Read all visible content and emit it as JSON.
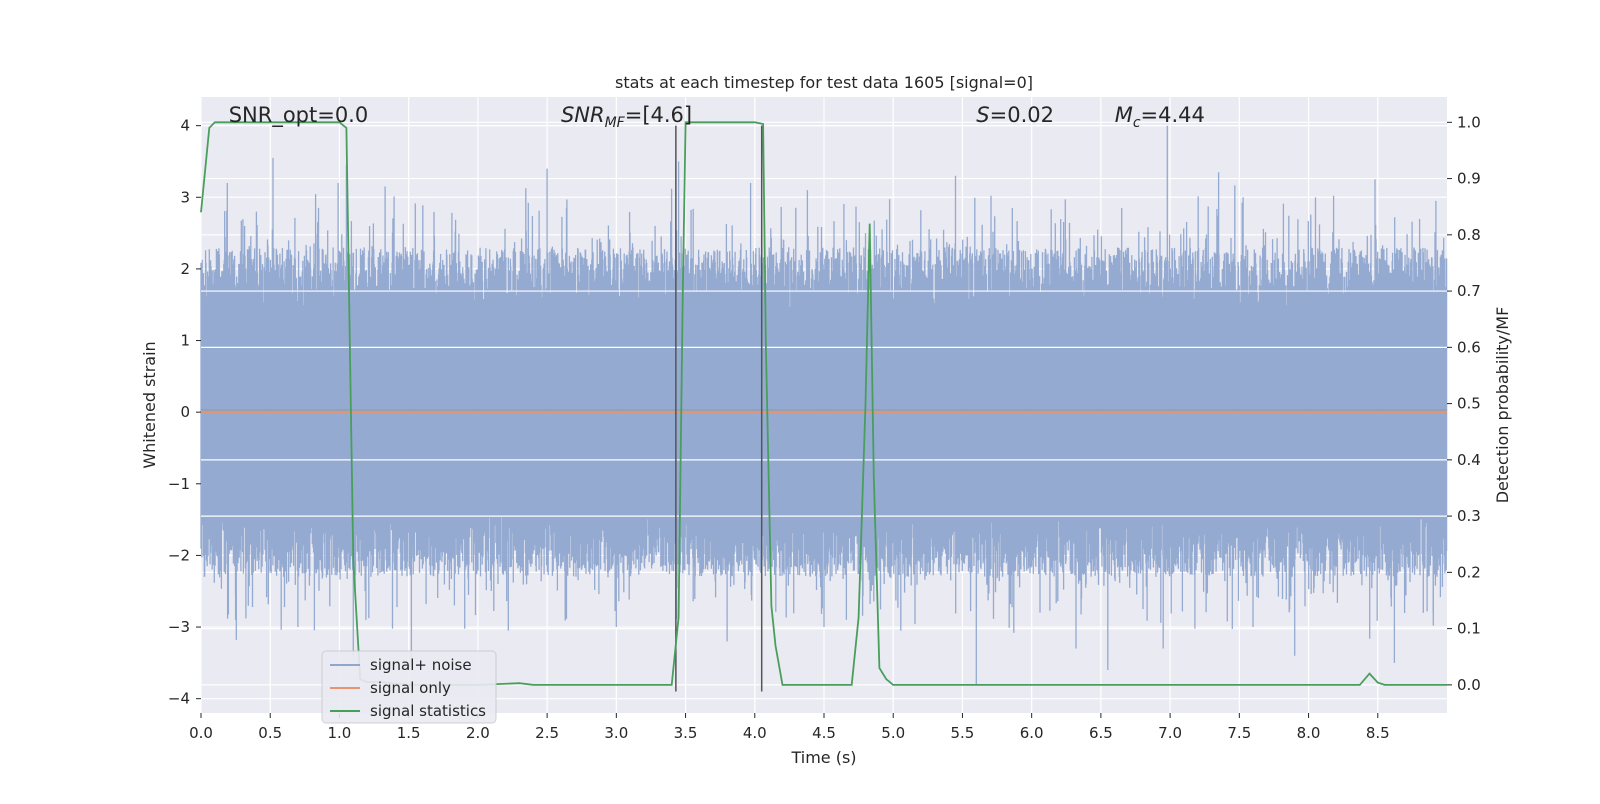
{
  "chart_data": {
    "type": "line",
    "title": "stats at each timestep for test data 1605 [signal=0]",
    "xlabel": "Time (s)",
    "ylabel": "Whitened strain",
    "ylabel_right": "Detection probability/MF",
    "xlim": [
      0.0,
      9.0
    ],
    "ylim": [
      -4.2,
      4.4
    ],
    "ylim_right": [
      -0.05,
      1.045
    ],
    "x_ticks": [
      0.0,
      0.5,
      1.0,
      1.5,
      2.0,
      2.5,
      3.0,
      3.5,
      4.0,
      4.5,
      5.0,
      5.5,
      6.0,
      6.5,
      7.0,
      7.5,
      8.0,
      8.5
    ],
    "x_tick_labels": [
      "0.0",
      "0.5",
      "1.0",
      "1.5",
      "2.0",
      "2.5",
      "3.0",
      "3.5",
      "4.0",
      "4.5",
      "5.0",
      "5.5",
      "6.0",
      "6.5",
      "7.0",
      "7.5",
      "8.0",
      "8.5"
    ],
    "y_ticks": [
      4,
      3,
      2,
      1,
      0,
      -1,
      -2,
      -3,
      -4
    ],
    "y_tick_labels": [
      "4",
      "3",
      "2",
      "1",
      "0",
      "−1",
      "−2",
      "−3",
      "−4"
    ],
    "y_ticks_right": [
      1.0,
      0.9,
      0.8,
      0.7,
      0.6,
      0.5,
      0.4,
      0.3,
      0.2,
      0.1,
      0.0
    ],
    "y_tick_labels_right": [
      "1.0",
      "0.9",
      "0.8",
      "0.7",
      "0.6",
      "0.5",
      "0.4",
      "0.3",
      "0.2",
      "0.1",
      "0.0"
    ],
    "annotations": [
      {
        "id": "snr-opt",
        "text": "SNR_opt=0.0",
        "x": 0.2,
        "y": 4.05
      },
      {
        "id": "snr-mf",
        "text": "SNR_MF=[4.6]",
        "x": 2.6,
        "y": 4.05
      },
      {
        "id": "s-value",
        "text": "S=0.02",
        "x": 5.6,
        "y": 4.05
      },
      {
        "id": "mc-value",
        "text": "M_c=4.44",
        "x": 6.6,
        "y": 4.05
      }
    ],
    "grid": true,
    "legend_position": "lower-left",
    "series": [
      {
        "name": "signal+ noise",
        "color": "#8fa6cf",
        "axis": "left",
        "description": "whitened noisy strain, dense, amplitude mostly within -3.9..4.0",
        "peak_x": [
          0.19,
          0.4,
          0.52,
          0.99,
          1.05,
          1.33,
          2.5,
          3.28,
          3.45,
          3.97,
          4.05,
          4.38,
          4.8,
          5.45,
          5.86,
          6.65,
          6.98,
          7.35,
          8.05,
          8.48,
          8.92
        ],
        "peak_y": [
          3.2,
          2.8,
          3.55,
          3.2,
          3.45,
          3.15,
          3.4,
          2.6,
          3.5,
          3.2,
          2.35,
          3.1,
          2.5,
          3.3,
          2.85,
          2.85,
          4.0,
          3.35,
          3.0,
          3.25,
          2.95
        ],
        "trough_x": [
          0.25,
          0.7,
          1.1,
          1.52,
          2.22,
          3.0,
          3.8,
          4.5,
          5.6,
          6.32,
          6.55,
          6.95,
          7.9,
          8.62,
          8.9
        ],
        "trough_y": [
          -2.9,
          -3.0,
          -3.4,
          -3.55,
          -3.05,
          -3.0,
          -3.2,
          -3.0,
          -3.8,
          -3.3,
          -3.6,
          -3.3,
          -3.4,
          -3.5,
          -2.8
        ]
      },
      {
        "name": "signal only",
        "color": "#e8946e",
        "axis": "left",
        "x": [
          0.0,
          9.0
        ],
        "y": [
          0.0,
          0.0
        ]
      },
      {
        "name": "signal statistics",
        "color": "#4a9e5c",
        "axis": "right",
        "x": [
          0.0,
          0.06,
          0.1,
          0.2,
          0.95,
          1.0,
          1.05,
          1.1,
          1.15,
          1.2,
          1.3,
          1.5,
          2.0,
          2.3,
          2.4,
          3.0,
          3.4,
          3.45,
          3.48,
          3.5,
          3.6,
          4.0,
          4.06,
          4.08,
          4.12,
          4.15,
          4.2,
          4.3,
          4.6,
          4.7,
          4.75,
          4.8,
          4.83,
          4.86,
          4.9,
          4.95,
          5.0,
          6.0,
          8.0,
          8.37,
          8.44,
          8.5,
          8.55,
          8.6,
          9.0
        ],
        "y": [
          0.84,
          0.99,
          1.0,
          1.0,
          1.0,
          1.0,
          0.99,
          0.22,
          0.01,
          0.005,
          0.005,
          0.0,
          0.0,
          0.003,
          0.0,
          0.0,
          0.0,
          0.12,
          0.7,
          1.0,
          1.0,
          1.0,
          0.997,
          0.6,
          0.14,
          0.07,
          0.0,
          0.0,
          0.0,
          0.0,
          0.12,
          0.5,
          0.82,
          0.37,
          0.03,
          0.01,
          0.0,
          0.0,
          0.0,
          0.0,
          0.02,
          0.004,
          0.0,
          0.0,
          0.0
        ]
      }
    ],
    "extra_lines": [
      {
        "name": "black-vertical",
        "color": "#555555",
        "x": [
          3.43,
          4.05
        ],
        "y_range": [
          -3.9,
          4.0
        ]
      }
    ]
  }
}
